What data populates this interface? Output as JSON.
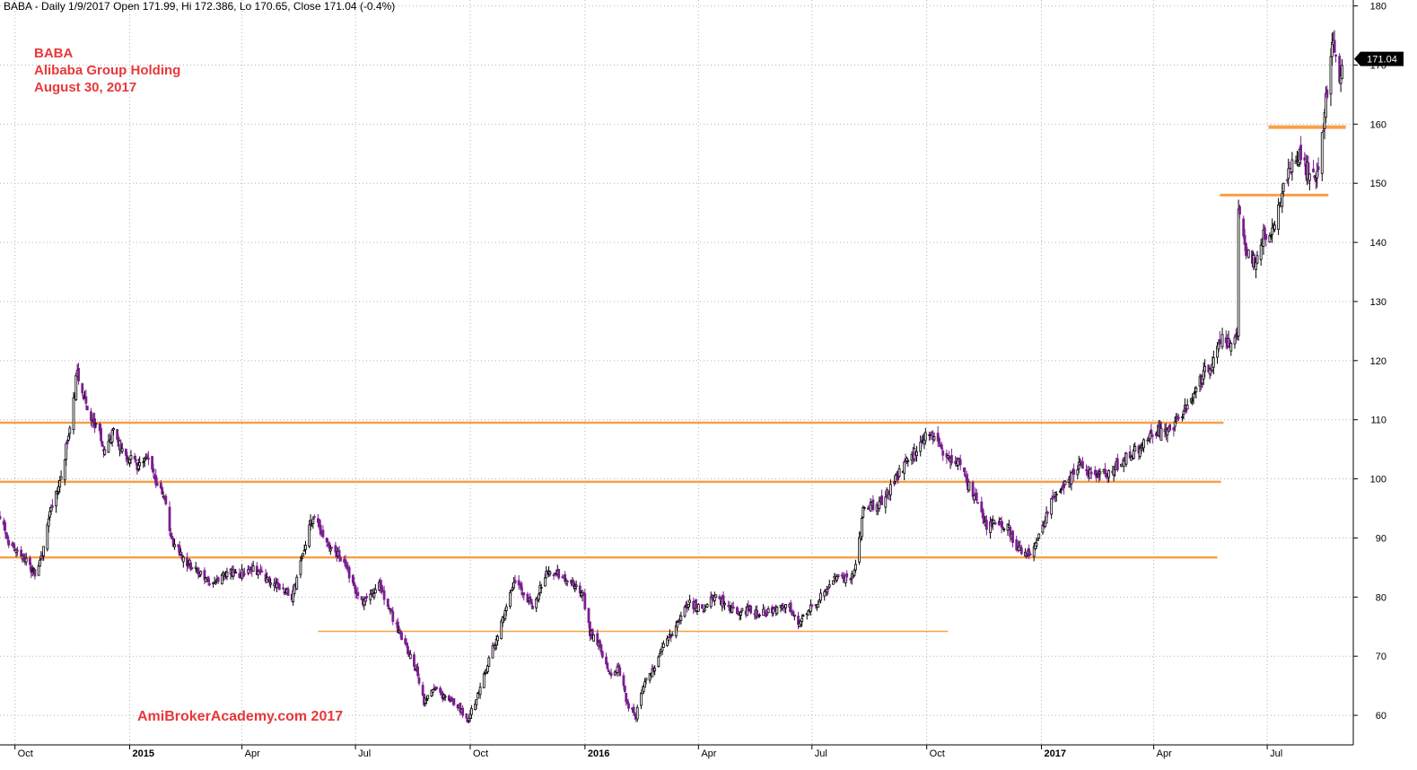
{
  "header": {
    "info": "BABA - Daily 1/9/2017 Open 171.99, Hi 172.386, Lo 170.65, Close 171.04 (-0.4%)"
  },
  "title": {
    "symbol": "BABA",
    "company": "Alibaba Group Holding",
    "date": "August 30, 2017",
    "color": "#e8383b"
  },
  "watermark": {
    "text": "AmiBrokerAcademy.com  2017",
    "color": "#e8383b"
  },
  "colors": {
    "grid": "#b4b4b4",
    "support_line": "#f7a04a",
    "up_candle": "#000000",
    "down_candle": "#7a1f8e",
    "price_label_bg": "#000000",
    "price_label_text": "#ffffff"
  },
  "chart_data": {
    "type": "candlestick",
    "symbol": "BABA",
    "period": "Daily",
    "last_close": 171.04,
    "last_close_label": "171.04",
    "y_axis": {
      "range": [
        55,
        181
      ],
      "ticks": [
        60,
        70,
        80,
        90,
        100,
        110,
        120,
        130,
        140,
        150,
        160,
        170,
        180
      ],
      "tick_labels": [
        "60",
        "70",
        "80",
        "90",
        "100",
        "110",
        "120",
        "130",
        "140",
        "150",
        "160",
        "170",
        "180"
      ],
      "position": "right"
    },
    "x_axis": {
      "range": [
        "2014-09-19",
        "2017-09-08"
      ],
      "ticks": [
        {
          "date": "2014-10-01",
          "label": "Oct",
          "bold": false
        },
        {
          "date": "2015-01-01",
          "label": "2015",
          "bold": true
        },
        {
          "date": "2015-04-01",
          "label": "Apr",
          "bold": false
        },
        {
          "date": "2015-07-01",
          "label": "Jul",
          "bold": false
        },
        {
          "date": "2015-10-01",
          "label": "Oct",
          "bold": false
        },
        {
          "date": "2016-01-01",
          "label": "2016",
          "bold": true
        },
        {
          "date": "2016-04-01",
          "label": "Apr",
          "bold": false
        },
        {
          "date": "2016-07-01",
          "label": "Jul",
          "bold": false
        },
        {
          "date": "2016-10-01",
          "label": "Oct",
          "bold": false
        },
        {
          "date": "2017-01-01",
          "label": "2017",
          "bold": true
        },
        {
          "date": "2017-04-01",
          "label": "Apr",
          "bold": false
        },
        {
          "date": "2017-07-01",
          "label": "Jul",
          "bold": false
        }
      ]
    },
    "grid": true,
    "price_path": [
      [
        "2014-09-19",
        94
      ],
      [
        "2014-09-26",
        89
      ],
      [
        "2014-10-10",
        86
      ],
      [
        "2014-10-17",
        84
      ],
      [
        "2014-10-24",
        88
      ],
      [
        "2014-10-31",
        96
      ],
      [
        "2014-11-07",
        100
      ],
      [
        "2014-11-14",
        109
      ],
      [
        "2014-11-20",
        118
      ],
      [
        "2014-11-28",
        112
      ],
      [
        "2014-12-05",
        109
      ],
      [
        "2014-12-12",
        105
      ],
      [
        "2014-12-19",
        108
      ],
      [
        "2014-12-26",
        105
      ],
      [
        "2015-01-07",
        102
      ],
      [
        "2015-01-15",
        104
      ],
      [
        "2015-01-22",
        99
      ],
      [
        "2015-01-28",
        97
      ],
      [
        "2015-02-05",
        89
      ],
      [
        "2015-02-12",
        87
      ],
      [
        "2015-02-20",
        85
      ],
      [
        "2015-03-02",
        83
      ],
      [
        "2015-03-10",
        82
      ],
      [
        "2015-03-20",
        84
      ],
      [
        "2015-04-01",
        84
      ],
      [
        "2015-04-10",
        85
      ],
      [
        "2015-04-20",
        83
      ],
      [
        "2015-05-01",
        82
      ],
      [
        "2015-05-11",
        80
      ],
      [
        "2015-05-20",
        87
      ],
      [
        "2015-05-28",
        94
      ],
      [
        "2015-06-05",
        90
      ],
      [
        "2015-06-15",
        88
      ],
      [
        "2015-06-25",
        84
      ],
      [
        "2015-07-06",
        79
      ],
      [
        "2015-07-10",
        80
      ],
      [
        "2015-07-20",
        82
      ],
      [
        "2015-07-28",
        78
      ],
      [
        "2015-08-05",
        74
      ],
      [
        "2015-08-12",
        71
      ],
      [
        "2015-08-20",
        67
      ],
      [
        "2015-08-25",
        62
      ],
      [
        "2015-09-02",
        65
      ],
      [
        "2015-09-10",
        63
      ],
      [
        "2015-09-20",
        62
      ],
      [
        "2015-09-29",
        59
      ],
      [
        "2015-10-06",
        63
      ],
      [
        "2015-10-14",
        68
      ],
      [
        "2015-10-22",
        73
      ],
      [
        "2015-10-30",
        78
      ],
      [
        "2015-11-06",
        83
      ],
      [
        "2015-11-12",
        81
      ],
      [
        "2015-11-20",
        78
      ],
      [
        "2015-12-01",
        84
      ],
      [
        "2015-12-10",
        84
      ],
      [
        "2015-12-20",
        82
      ],
      [
        "2015-12-30",
        81
      ],
      [
        "2016-01-05",
        74
      ],
      [
        "2016-01-12",
        72
      ],
      [
        "2016-01-20",
        67
      ],
      [
        "2016-01-28",
        68
      ],
      [
        "2016-02-04",
        62
      ],
      [
        "2016-02-11",
        60
      ],
      [
        "2016-02-18",
        66
      ],
      [
        "2016-02-26",
        68
      ],
      [
        "2016-03-04",
        72
      ],
      [
        "2016-03-14",
        75
      ],
      [
        "2016-03-24",
        79
      ],
      [
        "2016-04-05",
        78
      ],
      [
        "2016-04-14",
        80
      ],
      [
        "2016-04-22",
        79
      ],
      [
        "2016-05-02",
        77
      ],
      [
        "2016-05-12",
        78
      ],
      [
        "2016-05-20",
        77
      ],
      [
        "2016-06-01",
        78
      ],
      [
        "2016-06-10",
        79
      ],
      [
        "2016-06-20",
        76
      ],
      [
        "2016-06-30",
        78
      ],
      [
        "2016-07-08",
        80
      ],
      [
        "2016-07-18",
        83
      ],
      [
        "2016-07-27",
        83
      ],
      [
        "2016-08-04",
        84
      ],
      [
        "2016-08-12",
        96
      ],
      [
        "2016-08-22",
        95
      ],
      [
        "2016-09-01",
        98
      ],
      [
        "2016-09-12",
        102
      ],
      [
        "2016-09-20",
        104
      ],
      [
        "2016-09-28",
        107
      ],
      [
        "2016-10-06",
        107
      ],
      [
        "2016-10-14",
        104
      ],
      [
        "2016-10-25",
        103
      ],
      [
        "2016-11-03",
        99
      ],
      [
        "2016-11-10",
        97
      ],
      [
        "2016-11-17",
        92
      ],
      [
        "2016-11-25",
        93
      ],
      [
        "2016-12-05",
        92
      ],
      [
        "2016-12-13",
        88
      ],
      [
        "2016-12-20",
        87
      ],
      [
        "2016-12-28",
        89
      ],
      [
        "2017-01-05",
        94
      ],
      [
        "2017-01-12",
        98
      ],
      [
        "2017-01-20",
        99
      ],
      [
        "2017-01-31",
        102
      ],
      [
        "2017-02-10",
        101
      ],
      [
        "2017-02-21",
        101
      ],
      [
        "2017-03-02",
        102
      ],
      [
        "2017-03-13",
        104
      ],
      [
        "2017-03-24",
        106
      ],
      [
        "2017-04-04",
        108
      ],
      [
        "2017-04-13",
        108
      ],
      [
        "2017-04-24",
        111
      ],
      [
        "2017-05-03",
        114
      ],
      [
        "2017-05-12",
        118
      ],
      [
        "2017-05-19",
        120
      ],
      [
        "2017-05-25",
        124
      ],
      [
        "2017-06-01",
        123
      ],
      [
        "2017-06-07",
        125
      ],
      [
        "2017-06-08",
        146
      ],
      [
        "2017-06-14",
        139
      ],
      [
        "2017-06-21",
        137
      ],
      [
        "2017-06-28",
        141
      ],
      [
        "2017-07-06",
        142
      ],
      [
        "2017-07-12",
        148
      ],
      [
        "2017-07-19",
        152
      ],
      [
        "2017-07-26",
        155
      ],
      [
        "2017-08-03",
        152
      ],
      [
        "2017-08-09",
        150
      ],
      [
        "2017-08-14",
        158
      ],
      [
        "2017-08-18",
        166
      ],
      [
        "2017-08-23",
        175
      ],
      [
        "2017-08-28",
        168
      ],
      [
        "2017-08-30",
        171
      ]
    ],
    "levels": [
      {
        "price": 109.5,
        "from": "2014-09-19",
        "to": "2017-05-27",
        "width": 2.5
      },
      {
        "price": 99.5,
        "from": "2014-09-19",
        "to": "2017-05-25",
        "width": 2.5
      },
      {
        "price": 86.7,
        "from": "2014-09-19",
        "to": "2017-05-22",
        "width": 2.5
      },
      {
        "price": 74.2,
        "from": "2015-06-01",
        "to": "2016-10-18",
        "width": 1.5
      },
      {
        "price": 148.0,
        "from": "2017-05-24",
        "to": "2017-08-19",
        "width": 3
      },
      {
        "price": 159.5,
        "from": "2017-07-02",
        "to": "2017-09-02",
        "width": 4
      }
    ]
  }
}
